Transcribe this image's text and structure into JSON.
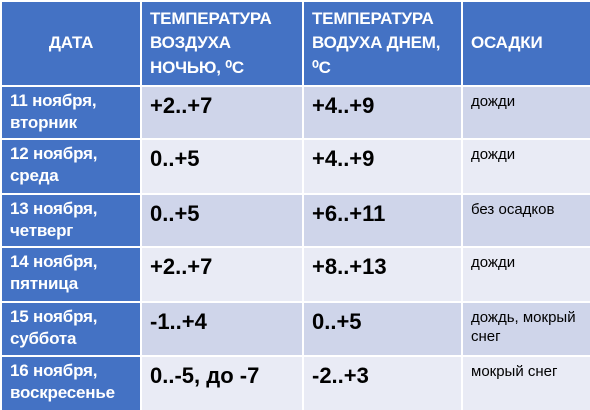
{
  "table": {
    "header": [
      "ДАТА",
      "ТЕМПЕРАТУРА ВОЗДУХА НОЧЬЮ, ⁰С",
      "ТЕМПЕРАТУРА ВОДУХА ДНЕМ, ⁰С",
      "ОСАДКИ"
    ],
    "rows": [
      [
        "11 ноября, вторник",
        "+2..+7",
        "+4..+9",
        "дожди"
      ],
      [
        "12 ноября, среда",
        "0..+5",
        "+4..+9",
        "дожди"
      ],
      [
        "13 ноября, четверг",
        "0..+5",
        "+6..+11",
        "без осадков"
      ],
      [
        "14 ноября, пятница",
        "+2..+7",
        "+8..+13",
        "дожди"
      ],
      [
        "15 ноября, суббота",
        "-1..+4",
        "0..+5",
        "дождь, мокрый снег"
      ],
      [
        "16 ноября, воскресенье",
        "0..-5, до -7",
        "-2..+3",
        "мокрый снег"
      ]
    ]
  }
}
